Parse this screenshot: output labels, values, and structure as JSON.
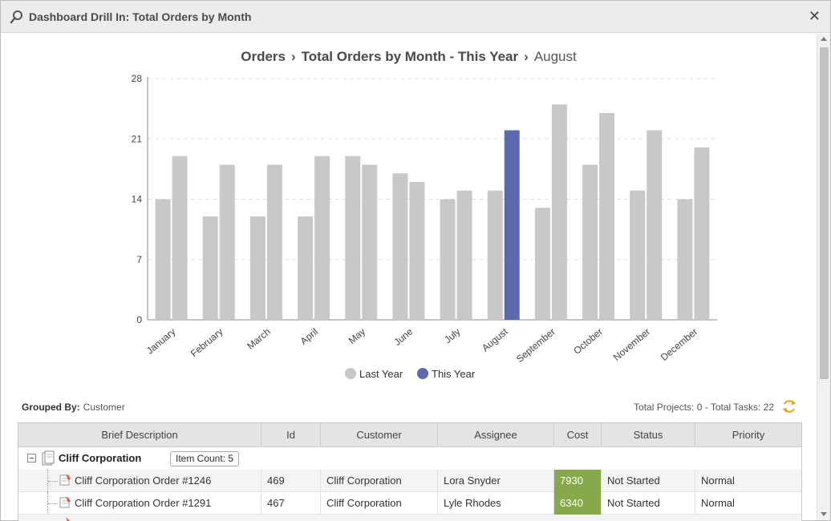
{
  "window": {
    "title": "Dashboard Drill In: Total Orders by Month",
    "close_label": "✕"
  },
  "breadcrumb": {
    "items": [
      "Orders",
      "Total Orders by Month - This Year"
    ],
    "current": "August",
    "separator": "›"
  },
  "chart_data": {
    "type": "bar",
    "categories": [
      "January",
      "February",
      "March",
      "April",
      "May",
      "June",
      "July",
      "August",
      "September",
      "October",
      "November",
      "December"
    ],
    "series": [
      {
        "name": "Last Year",
        "color": "#c8c8c8",
        "values": [
          14,
          12,
          12,
          12,
          19,
          17,
          14,
          15,
          13,
          18,
          15,
          14
        ]
      },
      {
        "name": "This Year",
        "color": "#c8c8c8",
        "values": [
          19,
          18,
          18,
          19,
          18,
          16,
          15,
          22,
          25,
          24,
          22,
          20
        ]
      }
    ],
    "highlight": {
      "series": "This Year",
      "category": "August",
      "color": "#5b6aad"
    },
    "legend_colors": {
      "Last Year": "#c8c8c8",
      "This Year": "#5b6aad"
    },
    "yticks": [
      0,
      7,
      14,
      21,
      28
    ],
    "ylim": [
      0,
      28
    ],
    "grid": true,
    "legend_position": "bottom"
  },
  "grouping": {
    "label": "Grouped By:",
    "value": "Customer"
  },
  "totals": "Total Projects: 0 - Total Tasks: 22",
  "table": {
    "columns": [
      "Brief Description",
      "Id",
      "Customer",
      "Assignee",
      "Cost",
      "Status",
      "Priority"
    ],
    "group": {
      "name": "Cliff Corporation",
      "item_count_label": "Item Count:",
      "item_count": "5"
    },
    "rows": [
      {
        "description": "Cliff Corporation Order #1246",
        "id": "469",
        "customer": "Cliff Corporation",
        "assignee": "Lora Snyder",
        "cost": "7930",
        "status": "Not Started",
        "priority": "Normal"
      },
      {
        "description": "Cliff Corporation Order #1291",
        "id": "467",
        "customer": "Cliff Corporation",
        "assignee": "Lyle Rhodes",
        "cost": "6340",
        "status": "Not Started",
        "priority": "Normal"
      }
    ]
  },
  "colors": {
    "accent": "#5b6aad",
    "cost_cell": "#88a94b",
    "refresh_icon": "#e8a21c"
  }
}
